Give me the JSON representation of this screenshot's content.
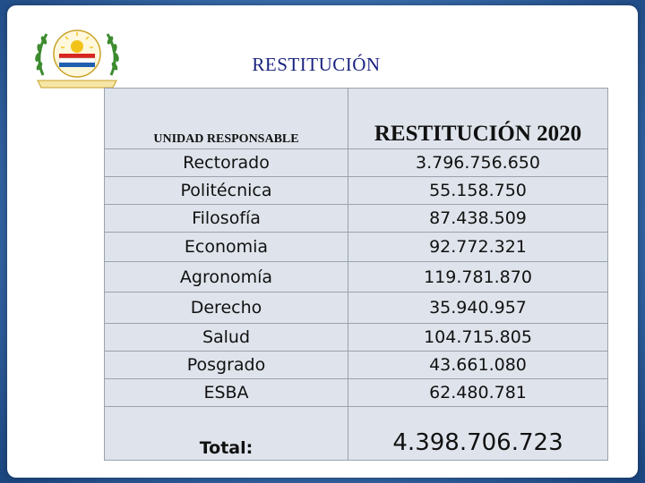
{
  "slide": {
    "title": "RESTITUCIÓN"
  },
  "logo": {
    "icon": "university-seal-icon",
    "colors": {
      "green": "#3d8b2f",
      "yellow": "#f2c31b",
      "red": "#d7261e",
      "blue": "#1f5fb0"
    }
  },
  "table": {
    "headers": {
      "unit": "UNIDAD RESPONSABLE",
      "amount": "RESTITUCIÓN 2020"
    },
    "rows": [
      {
        "unit": "Rectorado",
        "amount": "3.796.756.650"
      },
      {
        "unit": "Politécnica",
        "amount": "55.158.750"
      },
      {
        "unit": "Filosofía",
        "amount": "87.438.509"
      },
      {
        "unit": "Economia",
        "amount": "92.772.321"
      },
      {
        "unit": "Agronomía",
        "amount": "119.781.870"
      },
      {
        "unit": "Derecho",
        "amount": "35.940.957"
      },
      {
        "unit": "Salud",
        "amount": "104.715.805"
      },
      {
        "unit": "Posgrado",
        "amount": "43.661.080"
      },
      {
        "unit": "ESBA",
        "amount": "62.480.781"
      }
    ],
    "total": {
      "label": "Total:",
      "amount": "4.398.706.723"
    }
  }
}
